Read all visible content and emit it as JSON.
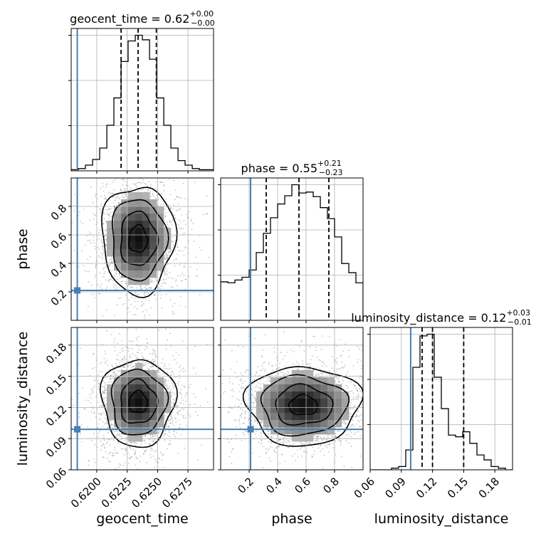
{
  "chart_data": {
    "type": "corner",
    "parameters": [
      "geocent_time",
      "phase",
      "luminosity_distance"
    ],
    "truths": {
      "geocent_time": 0.6184,
      "phase": 0.21,
      "luminosity_distance": 0.099
    },
    "truth_color": "#4682b4",
    "histogram_color": "#000000",
    "grid": true,
    "diagonal": [
      {
        "param": "geocent_time",
        "title": {
          "base": "geocent_time = 0.62",
          "sup": "+0.00",
          "sub": "−0.00"
        },
        "xlim": [
          0.6179,
          0.6296
        ],
        "quantiles": [
          0.622,
          0.6234,
          0.6249
        ],
        "bin_edges": [
          0.6179,
          0.61849,
          0.61907,
          0.61966,
          0.62024,
          0.62083,
          0.62141,
          0.622,
          0.62258,
          0.62317,
          0.62375,
          0.62434,
          0.62492,
          0.62551,
          0.62609,
          0.62668,
          0.62726,
          0.62785,
          0.62843,
          0.62902,
          0.6296
        ],
        "counts": [
          1,
          2,
          5,
          10,
          20,
          40,
          64,
          96,
          114,
          119,
          115,
          98,
          64,
          40,
          20,
          9,
          5,
          2,
          1,
          1
        ]
      },
      {
        "param": "phase",
        "title": {
          "base": "phase = 0.55",
          "sup": "+0.21",
          "sub": "−0.23"
        },
        "xlim": [
          0.0,
          1.0
        ],
        "quantiles": [
          0.32,
          0.55,
          0.76
        ],
        "bin_edges": [
          0.0,
          0.05,
          0.1,
          0.15,
          0.2,
          0.25,
          0.3,
          0.35,
          0.4,
          0.45,
          0.5,
          0.55,
          0.6,
          0.65,
          0.7,
          0.75,
          0.8,
          0.85,
          0.9,
          0.95,
          1.0
        ],
        "counts": [
          42,
          41,
          44,
          47,
          55,
          74,
          95,
          112,
          127,
          136,
          148,
          139,
          140,
          135,
          123,
          111,
          91,
          62,
          52,
          41
        ]
      },
      {
        "param": "luminosity_distance",
        "title": {
          "base": "luminosity_distance = 0.12",
          "sup": "+0.03",
          "sub": "−0.01"
        },
        "xlim": [
          0.06,
          0.197
        ],
        "quantiles": [
          0.11,
          0.12,
          0.15
        ],
        "bin_edges": [
          0.06,
          0.06685,
          0.0737,
          0.08055,
          0.0874,
          0.09425,
          0.1011,
          0.10795,
          0.1148,
          0.12165,
          0.1285,
          0.13535,
          0.1422,
          0.14905,
          0.1559,
          0.16275,
          0.1696,
          0.17645,
          0.1833,
          0.19015,
          0.197
        ],
        "counts": [
          0,
          0,
          0,
          1,
          2,
          12,
          62,
          81,
          82,
          56,
          37,
          21,
          20,
          23,
          16,
          9,
          6,
          2,
          1,
          0
        ]
      }
    ],
    "pairs": [
      {
        "x": "geocent_time",
        "y": "phase",
        "xlim": [
          0.6179,
          0.6296
        ],
        "ylim": [
          0.0,
          1.0
        ],
        "center": [
          0.6234,
          0.57
        ],
        "spread": [
          0.0015,
          0.19
        ]
      },
      {
        "x": "geocent_time",
        "y": "luminosity_distance",
        "xlim": [
          0.6179,
          0.6296
        ],
        "ylim": [
          0.06,
          0.197
        ],
        "center": [
          0.6234,
          0.125
        ],
        "spread": [
          0.0015,
          0.021
        ]
      },
      {
        "x": "phase",
        "y": "luminosity_distance",
        "xlim": [
          0.0,
          1.0
        ],
        "ylim": [
          0.06,
          0.197
        ],
        "center": [
          0.58,
          0.122
        ],
        "spread": [
          0.2,
          0.019
        ]
      }
    ],
    "x_ticks": {
      "geocent_time": [
        "0.6200",
        "0.6225",
        "0.6250",
        "0.6275"
      ],
      "phase": [
        "0.2",
        "0.4",
        "0.6",
        "0.8"
      ],
      "luminosity_distance": [
        "0.06",
        "0.09",
        "0.12",
        "0.15",
        "0.18"
      ]
    },
    "y_ticks": {
      "phase": [
        "0.2",
        "0.4",
        "0.6",
        "0.8"
      ],
      "luminosity_distance": [
        "0.06",
        "0.09",
        "0.12",
        "0.15",
        "0.18"
      ]
    },
    "axis_labels": {
      "x": [
        "geocent_time",
        "phase",
        "luminosity_distance"
      ],
      "y": [
        "phase",
        "luminosity_distance"
      ]
    }
  }
}
